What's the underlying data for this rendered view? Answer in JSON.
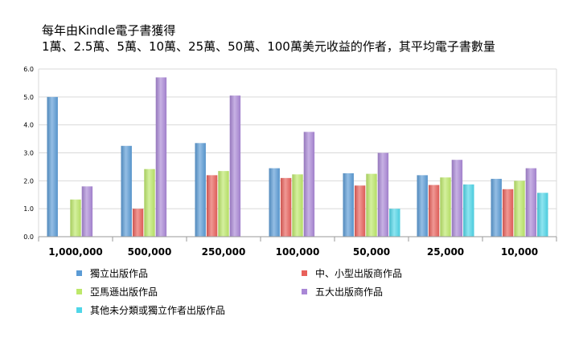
{
  "chart_data": {
    "type": "bar",
    "title": "每年由Kindle電子書獲得",
    "subtitle": "1萬、2.5萬、5萬、10萬、25萬、50萬、100萬美元收益的作者，其平均電子書數量",
    "categories": [
      "1,000,000",
      "500,000",
      "250,000",
      "100,000",
      "50,000",
      "25,000",
      "10,000"
    ],
    "ylim": [
      0,
      6
    ],
    "yticks": [
      "0.0",
      "1.0",
      "2.0",
      "3.0",
      "4.0",
      "5.0",
      "6.0"
    ],
    "grid": true,
    "legend_position": "bottom",
    "series": [
      {
        "name": "獨立出版作品",
        "color": "#5b9bd5",
        "values": [
          5.0,
          3.25,
          3.35,
          2.45,
          2.27,
          2.2,
          2.07
        ]
      },
      {
        "name": "中、小型出版商作品",
        "color": "#e8605a",
        "values": [
          0,
          1.0,
          2.2,
          2.1,
          1.83,
          1.85,
          1.7
        ]
      },
      {
        "name": "亞馬遜出版作品",
        "color": "#bde86a",
        "values": [
          1.33,
          2.42,
          2.35,
          2.23,
          2.25,
          2.12,
          2.0
        ]
      },
      {
        "name": "五大出版商作品",
        "color": "#a987d6",
        "values": [
          1.8,
          5.7,
          5.05,
          3.75,
          3.0,
          2.75,
          2.45
        ]
      },
      {
        "name": "其他未分類或獨立作者出版作品",
        "color": "#4fd6e8",
        "values": [
          0,
          0,
          0,
          0,
          1.0,
          1.87,
          1.57
        ]
      }
    ]
  }
}
